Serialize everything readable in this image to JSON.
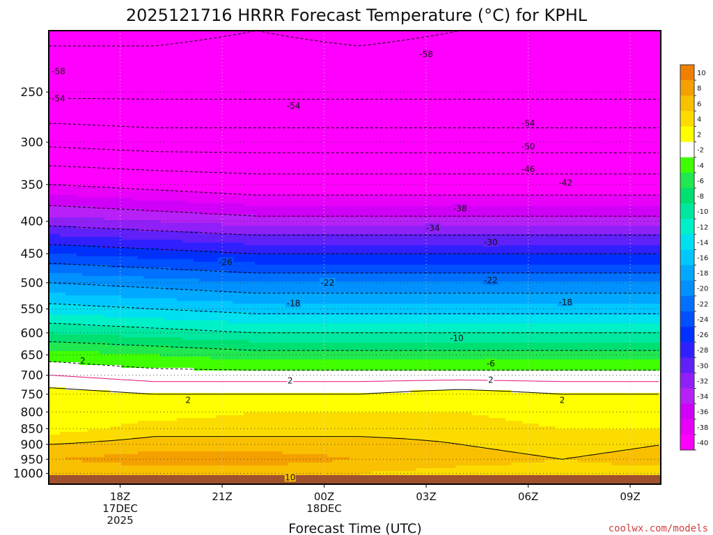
{
  "chart_data": {
    "type": "heatmap",
    "title": "2025121716 HRRR Forecast Temperature (°C) for KPHL",
    "xlabel": "Forecast Time (UTC)",
    "ylabel": "",
    "credit": "coolwx.com/models",
    "x_ticks": [
      {
        "x": 2,
        "lines": [
          "18Z",
          "17DEC",
          "2025"
        ]
      },
      {
        "x": 5,
        "lines": [
          "21Z"
        ]
      },
      {
        "x": 8,
        "lines": [
          "00Z",
          "18DEC"
        ]
      },
      {
        "x": 11,
        "lines": [
          "03Z"
        ]
      },
      {
        "x": 14,
        "lines": [
          "06Z"
        ]
      },
      {
        "x": 17,
        "lines": [
          "09Z"
        ]
      }
    ],
    "xlim": [
      -0.1,
      17.9
    ],
    "y_ticks": [
      250,
      300,
      350,
      400,
      450,
      500,
      550,
      600,
      650,
      700,
      750,
      800,
      850,
      900,
      950,
      1000
    ],
    "ylim": [
      1040,
      200
    ],
    "y_scale": "log",
    "colorbar": {
      "levels": [
        10,
        8,
        6,
        4,
        2,
        -2,
        -4,
        -6,
        -8,
        -10,
        -12,
        -14,
        -16,
        -18,
        -20,
        -22,
        -24,
        -26,
        -28,
        -30,
        -32,
        -34,
        -36,
        -38,
        -40
      ],
      "colors": [
        "#f08000",
        "#f4a000",
        "#f8c000",
        "#fcdc00",
        "#ffff00",
        "#ffffff",
        "#40ff00",
        "#20e850",
        "#00e070",
        "#00e8a0",
        "#00f0c8",
        "#00e0f0",
        "#00c8ff",
        "#00a8ff",
        "#0090ff",
        "#0070ff",
        "#0050ff",
        "#0030ff",
        "#3020ff",
        "#6020f8",
        "#9020f8",
        "#b820f8",
        "#d000f8",
        "#e800f8",
        "#ff00ff"
      ]
    },
    "profile_pressures": [
      1000,
      950,
      900,
      850,
      800,
      750,
      700,
      650,
      600,
      550,
      500,
      450,
      400,
      350,
      300,
      250,
      200
    ],
    "profile_times": [
      0,
      3,
      6,
      9,
      12,
      15,
      18
    ],
    "temperature_profiles": [
      [
        6,
        8,
        6,
        3,
        2,
        3,
        0,
        -3,
        -8,
        -13,
        -18,
        -24,
        -31,
        -38,
        -47,
        -55,
        -59
      ],
      [
        7,
        9,
        7,
        5,
        3,
        2,
        -1,
        -4,
        -9,
        -14,
        -19,
        -25,
        -32,
        -39,
        -48,
        -55,
        -59
      ],
      [
        7,
        9,
        7,
        5,
        4,
        2,
        -1,
        -5,
        -10,
        -15,
        -20,
        -26,
        -33,
        -40,
        -48,
        -55,
        -58
      ],
      [
        6,
        8,
        7,
        5,
        4,
        2,
        -1,
        -5,
        -10,
        -15,
        -20,
        -26,
        -33,
        -40,
        -48,
        -55,
        -59
      ],
      [
        5,
        7,
        6,
        5,
        4,
        3,
        -1,
        -5,
        -10,
        -15,
        -20,
        -26,
        -33,
        -40,
        -48,
        -55,
        -58
      ],
      [
        5,
        6,
        5,
        4,
        3,
        2,
        -1,
        -5,
        -10,
        -15,
        -20,
        -26,
        -33,
        -40,
        -48,
        -55,
        -58
      ],
      [
        5,
        7,
        6,
        4,
        3,
        2,
        -1,
        -5,
        -10,
        -15,
        -20,
        -26,
        -33,
        -40,
        -48,
        -55,
        -58
      ]
    ],
    "contour_labels": [
      {
        "t": -0.1,
        "p": 232,
        "text": "-58"
      },
      {
        "t": -0.1,
        "p": 256,
        "text": "-54"
      },
      {
        "t": 11.0,
        "p": 218,
        "text": "-58"
      },
      {
        "t": 7.1,
        "p": 263,
        "text": "-54"
      },
      {
        "t": 14.0,
        "p": 280,
        "text": "-54"
      },
      {
        "t": 14.0,
        "p": 305,
        "text": "-50"
      },
      {
        "t": 14.0,
        "p": 331,
        "text": "-46"
      },
      {
        "t": 15.1,
        "p": 348,
        "text": "-42"
      },
      {
        "t": 12.0,
        "p": 382,
        "text": "-38"
      },
      {
        "t": 11.2,
        "p": 410,
        "text": "-34"
      },
      {
        "t": 12.9,
        "p": 432,
        "text": "-30"
      },
      {
        "t": 5.1,
        "p": 464,
        "text": "-26"
      },
      {
        "t": 8.1,
        "p": 500,
        "text": "-22"
      },
      {
        "t": 12.9,
        "p": 496,
        "text": "-22"
      },
      {
        "t": 7.1,
        "p": 539,
        "text": "-18"
      },
      {
        "t": 15.1,
        "p": 537,
        "text": "-18"
      },
      {
        "t": 11.9,
        "p": 612,
        "text": "-10"
      },
      {
        "t": 12.9,
        "p": 671,
        "text": "-6"
      },
      {
        "t": 0.9,
        "p": 664,
        "text": "2"
      },
      {
        "t": 7.0,
        "p": 714,
        "text": "2"
      },
      {
        "t": 12.9,
        "p": 712,
        "text": "2"
      },
      {
        "t": 4.0,
        "p": 766,
        "text": "2"
      },
      {
        "t": 15.0,
        "p": 766,
        "text": "2"
      },
      {
        "t": 7.0,
        "p": 1015,
        "text": "10"
      }
    ]
  }
}
